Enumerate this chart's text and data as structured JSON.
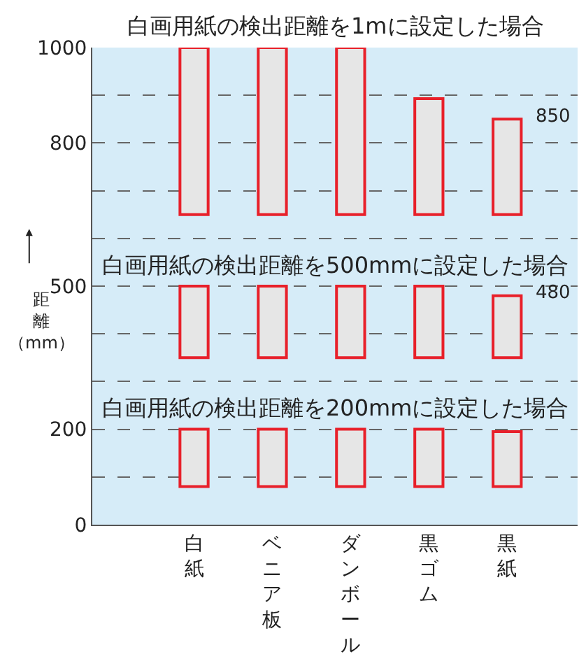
{
  "chart_data": {
    "type": "bar",
    "categories": [
      "白紙",
      "ベニア板",
      "ダンボール",
      "黒ゴム",
      "黒紙"
    ],
    "series": [
      {
        "color": "#e6e6e6",
        "values": [
          350,
          350,
          350,
          243,
          200
        ],
        "base": [
          650,
          650,
          650,
          650,
          650
        ]
      },
      {
        "color": "#e6e6e6",
        "values": [
          150,
          150,
          150,
          150,
          130
        ],
        "base": [
          350,
          350,
          350,
          350,
          350
        ]
      },
      {
        "color": "#e6e6e6",
        "values": [
          120,
          120,
          120,
          120,
          115
        ],
        "base": [
          80,
          80,
          80,
          80,
          80
        ]
      }
    ],
    "annotations": [
      "白画用紙の検出距離を1mに設定した場合",
      "白画用紙の検出距離を500mmに設定した場合",
      "白画用紙の検出距離を200mmに設定した場合",
      {
        "text": "850",
        "x": "黒紙",
        "y": 850
      },
      {
        "text": "480",
        "x": "黒紙",
        "y": 480
      }
    ],
    "ylabel": "距離（mm）",
    "ylim": [
      0,
      1000
    ],
    "yticks": [
      0,
      {
        "value": 100,
        "label": null
      },
      200,
      {
        "value": 300,
        "label": null
      },
      {
        "value": 400,
        "label": null
      },
      500,
      {
        "value": 600,
        "label": null
      },
      {
        "value": 700,
        "label": null
      },
      800,
      {
        "value": 900,
        "label": null
      },
      1000
    ],
    "grid": "y"
  }
}
